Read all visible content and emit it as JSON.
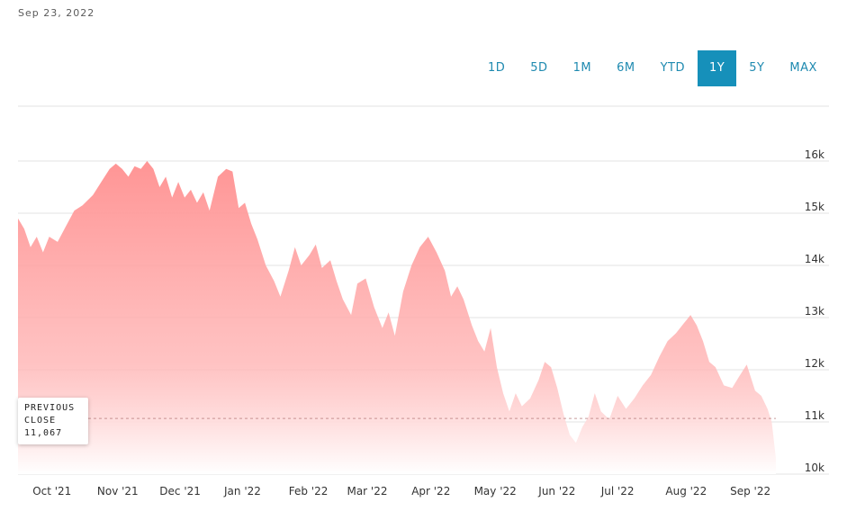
{
  "header": {
    "date": "Sep 23, 2022"
  },
  "range_selector": {
    "buttons": [
      "1D",
      "5D",
      "1M",
      "6M",
      "YTD",
      "1Y",
      "5Y",
      "MAX"
    ],
    "active": "1Y"
  },
  "previous_close": {
    "line1": "PREVIOUS",
    "line2": "CLOSE",
    "value": "11,067",
    "numeric": 11067
  },
  "colors": {
    "accent": "#1690ba",
    "area_top": "#ff8f8f",
    "area_bottom": "#ffffff",
    "grid": "#e3e3e3"
  },
  "chart_data": {
    "type": "area",
    "ylim": [
      10000,
      16500
    ],
    "y_ticks": [
      10000,
      11000,
      12000,
      13000,
      14000,
      15000,
      16000
    ],
    "y_tick_labels": [
      "10k",
      "11k",
      "12k",
      "13k",
      "14k",
      "15k",
      "16k"
    ],
    "x_tick_labels": [
      "Oct '21",
      "Nov '21",
      "Dec '21",
      "Jan '22",
      "Feb '22",
      "Mar '22",
      "Apr '22",
      "May '22",
      "Jun '22",
      "Jul '22",
      "Aug '22",
      "Sep '22"
    ],
    "x_range": [
      "2021-09-24",
      "2022-09-23"
    ],
    "x_tick_dates": [
      "2021-10-01",
      "2021-11-01",
      "2021-12-01",
      "2022-01-01",
      "2022-02-01",
      "2022-03-01",
      "2022-04-01",
      "2022-05-01",
      "2022-06-01",
      "2022-07-01",
      "2022-08-01",
      "2022-09-01"
    ],
    "series": [
      {
        "points": [
          [
            "2021-09-24",
            14900
          ],
          [
            "2021-09-27",
            14700
          ],
          [
            "2021-09-30",
            14350
          ],
          [
            "2021-10-03",
            14550
          ],
          [
            "2021-10-06",
            14250
          ],
          [
            "2021-10-09",
            14550
          ],
          [
            "2021-10-13",
            14450
          ],
          [
            "2021-10-17",
            14750
          ],
          [
            "2021-10-21",
            15050
          ],
          [
            "2021-10-25",
            15150
          ],
          [
            "2021-10-30",
            15350
          ],
          [
            "2021-11-03",
            15600
          ],
          [
            "2021-11-07",
            15850
          ],
          [
            "2021-11-10",
            15950
          ],
          [
            "2021-11-13",
            15850
          ],
          [
            "2021-11-16",
            15700
          ],
          [
            "2021-11-19",
            15900
          ],
          [
            "2021-11-22",
            15850
          ],
          [
            "2021-11-25",
            16000
          ],
          [
            "2021-11-28",
            15850
          ],
          [
            "2021-12-01",
            15500
          ],
          [
            "2021-12-04",
            15700
          ],
          [
            "2021-12-07",
            15300
          ],
          [
            "2021-12-10",
            15600
          ],
          [
            "2021-12-13",
            15300
          ],
          [
            "2021-12-16",
            15450
          ],
          [
            "2021-12-19",
            15200
          ],
          [
            "2021-12-22",
            15400
          ],
          [
            "2021-12-25",
            15050
          ],
          [
            "2021-12-29",
            15700
          ],
          [
            "2022-01-02",
            15850
          ],
          [
            "2022-01-05",
            15800
          ],
          [
            "2022-01-08",
            15100
          ],
          [
            "2022-01-11",
            15200
          ],
          [
            "2022-01-14",
            14800
          ],
          [
            "2022-01-17",
            14500
          ],
          [
            "2022-01-21",
            14000
          ],
          [
            "2022-01-25",
            13700
          ],
          [
            "2022-01-28",
            13400
          ],
          [
            "2022-02-01",
            13900
          ],
          [
            "2022-02-04",
            14350
          ],
          [
            "2022-02-07",
            14000
          ],
          [
            "2022-02-11",
            14200
          ],
          [
            "2022-02-14",
            14400
          ],
          [
            "2022-02-17",
            13950
          ],
          [
            "2022-02-21",
            14100
          ],
          [
            "2022-02-24",
            13700
          ],
          [
            "2022-02-27",
            13350
          ],
          [
            "2022-03-03",
            13050
          ],
          [
            "2022-03-06",
            13650
          ],
          [
            "2022-03-10",
            13750
          ],
          [
            "2022-03-14",
            13200
          ],
          [
            "2022-03-18",
            12800
          ],
          [
            "2022-03-21",
            13100
          ],
          [
            "2022-03-24",
            12650
          ],
          [
            "2022-03-28",
            13500
          ],
          [
            "2022-04-01",
            14000
          ],
          [
            "2022-04-05",
            14350
          ],
          [
            "2022-04-09",
            14550
          ],
          [
            "2022-04-13",
            14250
          ],
          [
            "2022-04-17",
            13900
          ],
          [
            "2022-04-20",
            13400
          ],
          [
            "2022-04-23",
            13600
          ],
          [
            "2022-04-26",
            13350
          ],
          [
            "2022-04-30",
            12850
          ],
          [
            "2022-05-03",
            12550
          ],
          [
            "2022-05-06",
            12350
          ],
          [
            "2022-05-09",
            12800
          ],
          [
            "2022-05-12",
            12050
          ],
          [
            "2022-05-15",
            11550
          ],
          [
            "2022-05-18",
            11200
          ],
          [
            "2022-05-21",
            11550
          ],
          [
            "2022-05-24",
            11300
          ],
          [
            "2022-05-28",
            11450
          ],
          [
            "2022-06-01",
            11800
          ],
          [
            "2022-06-04",
            12150
          ],
          [
            "2022-06-07",
            12050
          ],
          [
            "2022-06-10",
            11650
          ],
          [
            "2022-06-13",
            11150
          ],
          [
            "2022-06-16",
            10750
          ],
          [
            "2022-06-19",
            10600
          ],
          [
            "2022-06-22",
            10900
          ],
          [
            "2022-06-25",
            11100
          ],
          [
            "2022-06-28",
            11550
          ],
          [
            "2022-07-01",
            11200
          ],
          [
            "2022-07-05",
            11050
          ],
          [
            "2022-07-09",
            11500
          ],
          [
            "2022-07-13",
            11250
          ],
          [
            "2022-07-17",
            11450
          ],
          [
            "2022-07-21",
            11700
          ],
          [
            "2022-07-25",
            11900
          ],
          [
            "2022-07-29",
            12250
          ],
          [
            "2022-08-02",
            12550
          ],
          [
            "2022-08-06",
            12700
          ],
          [
            "2022-08-10",
            12900
          ],
          [
            "2022-08-13",
            13050
          ],
          [
            "2022-08-16",
            12850
          ],
          [
            "2022-08-19",
            12550
          ],
          [
            "2022-08-22",
            12150
          ],
          [
            "2022-08-25",
            12050
          ],
          [
            "2022-08-29",
            11700
          ],
          [
            "2022-09-02",
            11650
          ],
          [
            "2022-09-05",
            11850
          ],
          [
            "2022-09-09",
            12100
          ],
          [
            "2022-09-13",
            11600
          ],
          [
            "2022-09-16",
            11500
          ],
          [
            "2022-09-19",
            11250
          ],
          [
            "2022-09-21",
            11000
          ],
          [
            "2022-09-23",
            10300
          ]
        ]
      }
    ],
    "reference_line": {
      "value": 11067,
      "style": "dashed"
    },
    "grid": true,
    "legend": "none"
  }
}
